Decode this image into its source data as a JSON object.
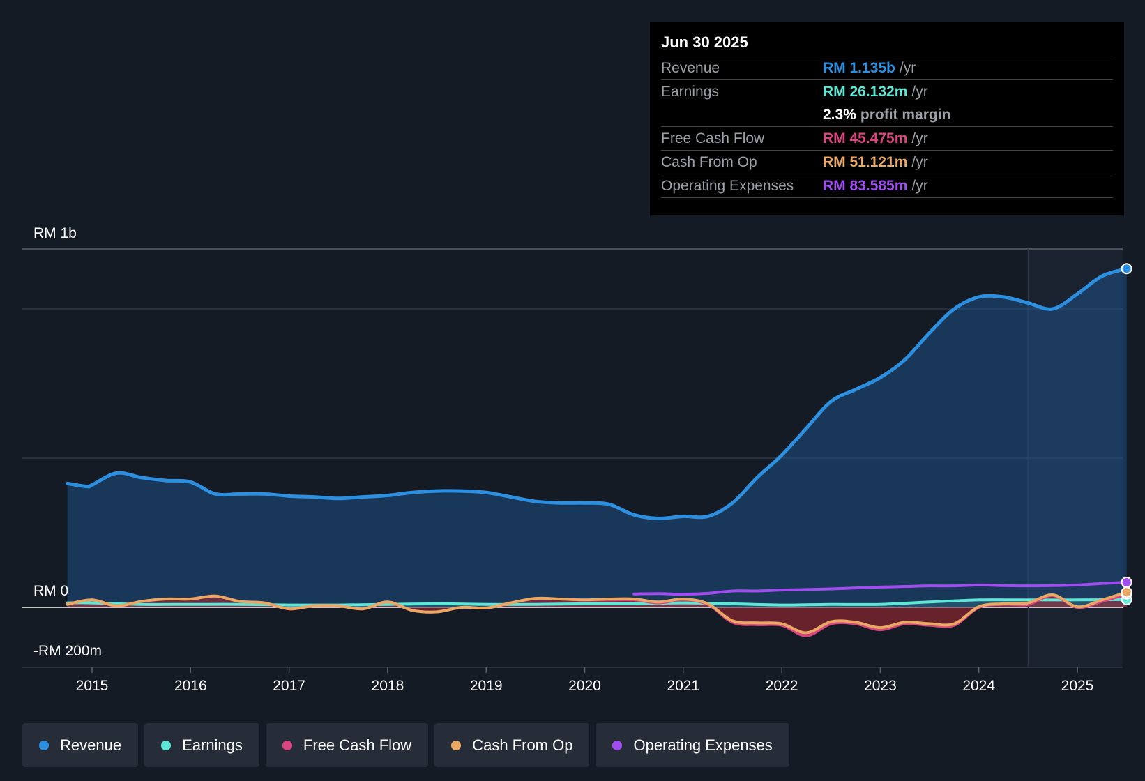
{
  "chart_data": {
    "type": "area",
    "title": "",
    "y_unit_labels": {
      "top": "RM 1b",
      "zero": "RM 0",
      "bottom": "-RM 200m"
    },
    "ylim": [
      -200,
      1200
    ],
    "xlim": [
      2014.55,
      2025.5
    ],
    "x_ticks": [
      2015,
      2016,
      2017,
      2018,
      2019,
      2020,
      2021,
      2022,
      2023,
      2024,
      2025
    ],
    "forecast_start": 2024.5,
    "series": [
      {
        "name": "Revenue",
        "color": "#2d8fe0",
        "fill": true,
        "points": [
          [
            2014.75,
            415
          ],
          [
            2014.95,
            405
          ],
          [
            2015.0,
            410
          ],
          [
            2015.25,
            450
          ],
          [
            2015.5,
            435
          ],
          [
            2015.75,
            425
          ],
          [
            2016.0,
            420
          ],
          [
            2016.25,
            380
          ],
          [
            2016.5,
            380
          ],
          [
            2016.75,
            380
          ],
          [
            2017.0,
            373
          ],
          [
            2017.25,
            370
          ],
          [
            2017.5,
            365
          ],
          [
            2017.75,
            370
          ],
          [
            2018.0,
            375
          ],
          [
            2018.25,
            385
          ],
          [
            2018.5,
            390
          ],
          [
            2018.75,
            390
          ],
          [
            2019.0,
            385
          ],
          [
            2019.25,
            370
          ],
          [
            2019.5,
            355
          ],
          [
            2019.75,
            350
          ],
          [
            2020.0,
            350
          ],
          [
            2020.25,
            345
          ],
          [
            2020.5,
            310
          ],
          [
            2020.75,
            298
          ],
          [
            2021.0,
            305
          ],
          [
            2021.25,
            305
          ],
          [
            2021.5,
            350
          ],
          [
            2021.75,
            435
          ],
          [
            2022.0,
            510
          ],
          [
            2022.25,
            600
          ],
          [
            2022.5,
            690
          ],
          [
            2022.75,
            730
          ],
          [
            2023.0,
            770
          ],
          [
            2023.25,
            830
          ],
          [
            2023.5,
            920
          ],
          [
            2023.75,
            1000
          ],
          [
            2024.0,
            1040
          ],
          [
            2024.25,
            1040
          ],
          [
            2024.5,
            1020
          ],
          [
            2024.75,
            1000
          ],
          [
            2025.0,
            1050
          ],
          [
            2025.25,
            1110
          ],
          [
            2025.5,
            1135
          ]
        ]
      },
      {
        "name": "Earnings",
        "color": "#5ee6d6",
        "fill": true,
        "points": [
          [
            2014.75,
            15
          ],
          [
            2015.0,
            15
          ],
          [
            2015.5,
            10
          ],
          [
            2016.0,
            10
          ],
          [
            2016.5,
            10
          ],
          [
            2017.0,
            8
          ],
          [
            2017.5,
            8
          ],
          [
            2018.0,
            10
          ],
          [
            2018.5,
            12
          ],
          [
            2019.0,
            10
          ],
          [
            2019.5,
            10
          ],
          [
            2020.0,
            12
          ],
          [
            2020.5,
            12
          ],
          [
            2021.0,
            15
          ],
          [
            2021.5,
            12
          ],
          [
            2022.0,
            8
          ],
          [
            2022.5,
            10
          ],
          [
            2023.0,
            10
          ],
          [
            2023.5,
            18
          ],
          [
            2024.0,
            25
          ],
          [
            2024.5,
            25
          ],
          [
            2025.0,
            25
          ],
          [
            2025.5,
            26
          ]
        ]
      },
      {
        "name": "Free Cash Flow",
        "color": "#d9457f",
        "fill": true,
        "points": [
          [
            2014.75,
            10
          ],
          [
            2015.0,
            25
          ],
          [
            2015.25,
            5
          ],
          [
            2015.5,
            20
          ],
          [
            2015.75,
            28
          ],
          [
            2016.0,
            28
          ],
          [
            2016.25,
            38
          ],
          [
            2016.5,
            20
          ],
          [
            2016.75,
            15
          ],
          [
            2017.0,
            -5
          ],
          [
            2017.25,
            5
          ],
          [
            2017.5,
            5
          ],
          [
            2017.75,
            -5
          ],
          [
            2018.0,
            18
          ],
          [
            2018.25,
            -10
          ],
          [
            2018.5,
            -15
          ],
          [
            2018.75,
            0
          ],
          [
            2019.0,
            -2
          ],
          [
            2019.25,
            15
          ],
          [
            2019.5,
            30
          ],
          [
            2019.75,
            28
          ],
          [
            2020.0,
            25
          ],
          [
            2020.25,
            25
          ],
          [
            2020.5,
            25
          ],
          [
            2020.75,
            15
          ],
          [
            2021.0,
            25
          ],
          [
            2021.25,
            10
          ],
          [
            2021.5,
            -50
          ],
          [
            2021.75,
            -58
          ],
          [
            2022.0,
            -60
          ],
          [
            2022.25,
            -95
          ],
          [
            2022.5,
            -55
          ],
          [
            2022.75,
            -55
          ],
          [
            2023.0,
            -75
          ],
          [
            2023.25,
            -55
          ],
          [
            2023.5,
            -60
          ],
          [
            2023.75,
            -60
          ],
          [
            2024.0,
            0
          ],
          [
            2024.25,
            10
          ],
          [
            2024.5,
            10
          ],
          [
            2024.75,
            40
          ],
          [
            2025.0,
            0
          ],
          [
            2025.25,
            20
          ],
          [
            2025.5,
            45
          ]
        ]
      },
      {
        "name": "Cash From Op",
        "color": "#e9a864",
        "fill": false,
        "points": [
          [
            2014.75,
            10
          ],
          [
            2015.0,
            25
          ],
          [
            2015.25,
            5
          ],
          [
            2015.5,
            20
          ],
          [
            2015.75,
            28
          ],
          [
            2016.0,
            28
          ],
          [
            2016.25,
            38
          ],
          [
            2016.5,
            20
          ],
          [
            2016.75,
            15
          ],
          [
            2017.0,
            -5
          ],
          [
            2017.25,
            5
          ],
          [
            2017.5,
            5
          ],
          [
            2017.75,
            -5
          ],
          [
            2018.0,
            18
          ],
          [
            2018.25,
            -10
          ],
          [
            2018.5,
            -15
          ],
          [
            2018.75,
            0
          ],
          [
            2019.0,
            -2
          ],
          [
            2019.25,
            15
          ],
          [
            2019.5,
            30
          ],
          [
            2019.75,
            28
          ],
          [
            2020.0,
            25
          ],
          [
            2020.25,
            28
          ],
          [
            2020.5,
            28
          ],
          [
            2020.75,
            18
          ],
          [
            2021.0,
            28
          ],
          [
            2021.25,
            12
          ],
          [
            2021.5,
            -45
          ],
          [
            2021.75,
            -52
          ],
          [
            2022.0,
            -55
          ],
          [
            2022.25,
            -85
          ],
          [
            2022.5,
            -48
          ],
          [
            2022.75,
            -50
          ],
          [
            2023.0,
            -68
          ],
          [
            2023.25,
            -50
          ],
          [
            2023.5,
            -55
          ],
          [
            2023.75,
            -55
          ],
          [
            2024.0,
            2
          ],
          [
            2024.25,
            12
          ],
          [
            2024.5,
            15
          ],
          [
            2024.75,
            42
          ],
          [
            2025.0,
            2
          ],
          [
            2025.25,
            25
          ],
          [
            2025.5,
            51
          ]
        ]
      },
      {
        "name": "Operating Expenses",
        "color": "#a04df0",
        "fill": false,
        "points": [
          [
            2020.5,
            45
          ],
          [
            2020.75,
            46
          ],
          [
            2021.0,
            44
          ],
          [
            2021.25,
            47
          ],
          [
            2021.5,
            55
          ],
          [
            2021.75,
            55
          ],
          [
            2022.0,
            58
          ],
          [
            2022.25,
            60
          ],
          [
            2022.5,
            62
          ],
          [
            2022.75,
            65
          ],
          [
            2023.0,
            68
          ],
          [
            2023.25,
            70
          ],
          [
            2023.5,
            72
          ],
          [
            2023.75,
            72
          ],
          [
            2024.0,
            75
          ],
          [
            2024.25,
            73
          ],
          [
            2024.5,
            72
          ],
          [
            2024.75,
            73
          ],
          [
            2025.0,
            75
          ],
          [
            2025.25,
            80
          ],
          [
            2025.5,
            84
          ]
        ]
      }
    ]
  },
  "tooltip": {
    "date": "Jun 30 2025",
    "rows": [
      {
        "label": "Revenue",
        "value": "RM 1.135b",
        "unit": "/yr",
        "color": "#2d8fe0"
      },
      {
        "label": "Earnings",
        "value": "RM 26.132m",
        "unit": "/yr",
        "color": "#5ee6d6"
      },
      {
        "label": "",
        "value": "2.3%",
        "unit": "profit margin",
        "color": "#ffffff"
      },
      {
        "label": "Free Cash Flow",
        "value": "RM 45.475m",
        "unit": "/yr",
        "color": "#d9457f"
      },
      {
        "label": "Cash From Op",
        "value": "RM 51.121m",
        "unit": "/yr",
        "color": "#e9a864"
      },
      {
        "label": "Operating Expenses",
        "value": "RM 83.585m",
        "unit": "/yr",
        "color": "#a04df0"
      }
    ]
  },
  "legend": [
    {
      "label": "Revenue",
      "color": "#2d8fe0"
    },
    {
      "label": "Earnings",
      "color": "#5ee6d6"
    },
    {
      "label": "Free Cash Flow",
      "color": "#d9457f"
    },
    {
      "label": "Cash From Op",
      "color": "#e9a864"
    },
    {
      "label": "Operating Expenses",
      "color": "#a04df0"
    }
  ]
}
